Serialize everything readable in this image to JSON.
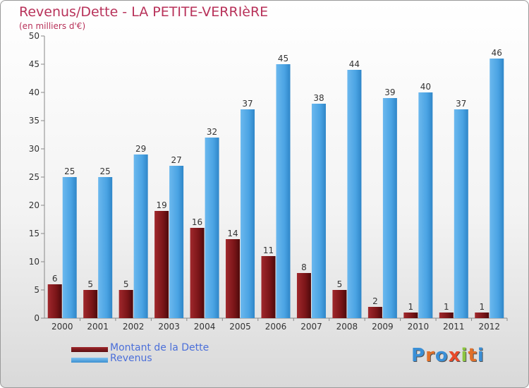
{
  "title": "Revenus/Dette - LA PETITE-VERRIèRE",
  "subtitle": "(en milliers d'€)",
  "legend": {
    "debt_label": "Montant de la Dette",
    "revenue_label": "Revenus"
  },
  "logo_text": "Proxiti",
  "colors": {
    "debt": "#7a1518",
    "revenue": "#4aa3e3",
    "title": "#b8325a",
    "legend_text": "#4b6fd9"
  },
  "chart_data": {
    "type": "bar",
    "title": "Revenus/Dette - LA PETITE-VERRIèRE",
    "subtitle": "(en milliers d'€)",
    "xlabel": "",
    "ylabel": "",
    "ylim": [
      0,
      50
    ],
    "yticks": [
      0,
      5,
      10,
      15,
      20,
      25,
      30,
      35,
      40,
      45,
      50
    ],
    "categories": [
      "2000",
      "2001",
      "2002",
      "2003",
      "2004",
      "2005",
      "2006",
      "2007",
      "2008",
      "2009",
      "2010",
      "2011",
      "2012"
    ],
    "series": [
      {
        "name": "Montant de la Dette",
        "values": [
          6,
          5,
          5,
          19,
          16,
          14,
          11,
          8,
          5,
          2,
          1,
          1,
          1
        ]
      },
      {
        "name": "Revenus",
        "values": [
          25,
          25,
          29,
          27,
          32,
          37,
          45,
          38,
          44,
          39,
          40,
          37,
          46
        ]
      }
    ],
    "grid": false,
    "legend_position": "bottom-left"
  }
}
